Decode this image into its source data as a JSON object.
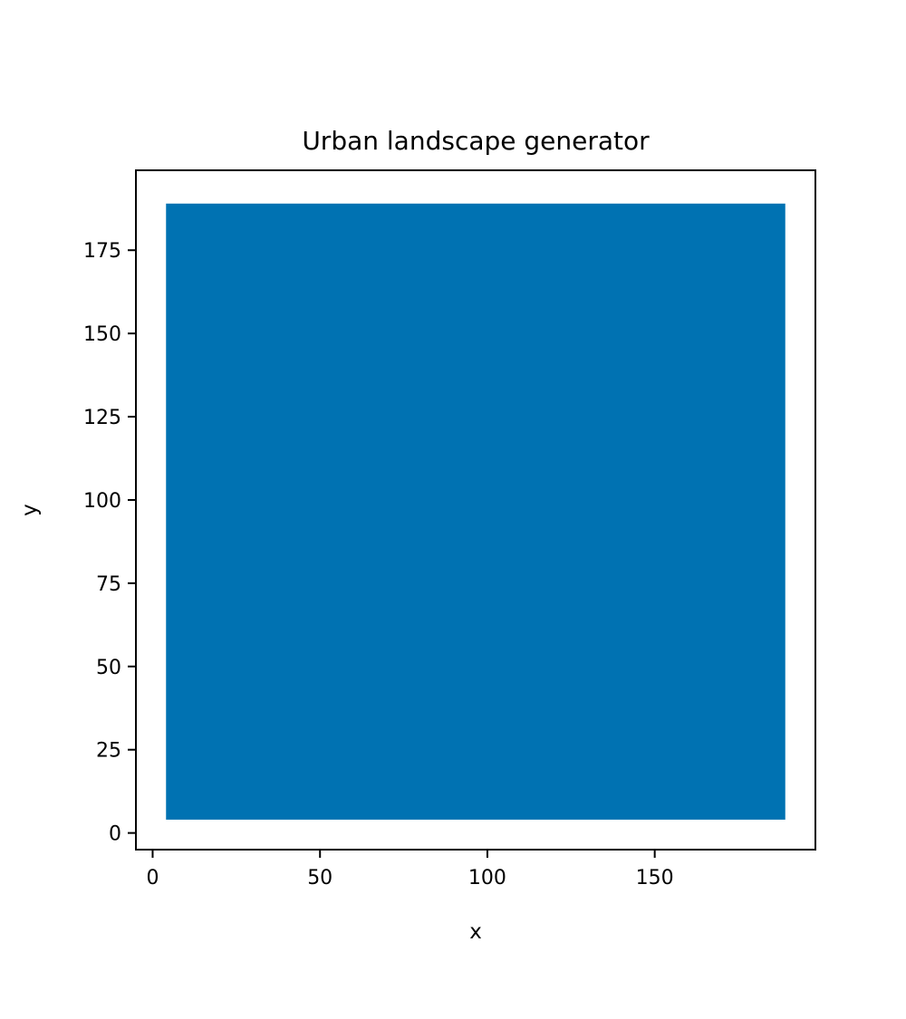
{
  "chart_data": {
    "type": "area",
    "title": "Urban landscape generator",
    "xlabel": "x",
    "ylabel": "y",
    "xlim": [
      -5,
      198
    ],
    "ylim": [
      -5,
      199
    ],
    "xticks": [
      0,
      50,
      100,
      150
    ],
    "yticks": [
      0,
      25,
      50,
      75,
      100,
      125,
      150,
      175
    ],
    "grid": false,
    "legend": "none",
    "regions": [
      {
        "x0": 4,
        "x1": 189,
        "y0": 4,
        "y1": 189,
        "color": "#0072b2"
      }
    ]
  }
}
